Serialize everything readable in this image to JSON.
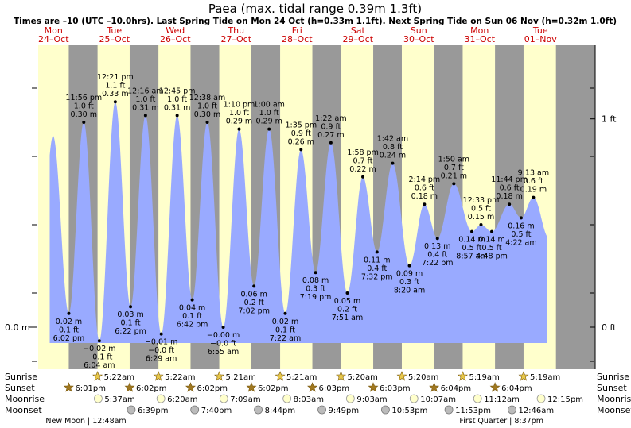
{
  "title": "Paea (max. tidal range 0.39m 1.3ft)",
  "subtitle": "Times are –10 (UTC –10.0hrs). Last Spring Tide on Mon 24 Oct (h=0.33m 1.1ft). Next Spring Tide on Sun 06 Nov (h=0.32m 1.0ft)",
  "colors": {
    "day": "#ffffcc",
    "night": "#999999",
    "tide_fill": "#99aaff",
    "header_red": "#cc0000",
    "sun_star": "#e8c84a",
    "sunset_star": "#a07820",
    "moonrise": "#ffffcc",
    "moonset": "#bbbbbb"
  },
  "days": [
    {
      "dow": "Mon",
      "date": "24–Oct"
    },
    {
      "dow": "Tue",
      "date": "25–Oct"
    },
    {
      "dow": "Wed",
      "date": "26–Oct"
    },
    {
      "dow": "Thu",
      "date": "27–Oct"
    },
    {
      "dow": "Fri",
      "date": "28–Oct"
    },
    {
      "dow": "Sat",
      "date": "29–Oct"
    },
    {
      "dow": "Sun",
      "date": "30–Oct"
    },
    {
      "dow": "Mon",
      "date": "31–Oct"
    },
    {
      "dow": "Tue",
      "date": "01–Nov"
    }
  ],
  "chart_data": {
    "type": "area",
    "title": "Paea (max. tidal range 0.39m 1.3ft)",
    "x_unit": "hours since 24-Oct 00:00 (UTC-10)",
    "y_unit": "m",
    "xlim": [
      0,
      216
    ],
    "ylim": [
      -0.07,
      0.43
    ],
    "left_axis_label": "0.0 m",
    "right_axis_labels": [
      {
        "value": 0.305,
        "label": "1 ft"
      },
      {
        "value": 0.0,
        "label": "0 ft"
      }
    ],
    "extremes": [
      {
        "t": 18.03,
        "h": 0.02,
        "time": "6:02 pm",
        "m": "0.02 m",
        "ft": "0.1 ft",
        "type": "low"
      },
      {
        "t": 23.93,
        "h": 0.3,
        "time": "11:56 pm",
        "m": "0.30 m",
        "ft": "1.0 ft",
        "type": "high"
      },
      {
        "t": 30.07,
        "h": -0.02,
        "time": "6:04 am",
        "m": "−0.02 m",
        "ft": "−0.1 ft",
        "type": "low"
      },
      {
        "t": 36.35,
        "h": 0.33,
        "time": "12:21 pm",
        "m": "0.33 m",
        "ft": "1.1 ft",
        "type": "high"
      },
      {
        "t": 42.37,
        "h": 0.03,
        "time": "6:22 pm",
        "m": "0.03 m",
        "ft": "0.1 ft",
        "type": "low"
      },
      {
        "t": 48.27,
        "h": 0.31,
        "time": "12:16 am",
        "m": "0.31 m",
        "ft": "1.0 ft",
        "type": "high"
      },
      {
        "t": 54.48,
        "h": -0.01,
        "time": "6:29 am",
        "m": "−0.01 m",
        "ft": "−0.0 ft",
        "type": "low"
      },
      {
        "t": 60.75,
        "h": 0.31,
        "time": "12:45 pm",
        "m": "0.31 m",
        "ft": "1.0 ft",
        "type": "high"
      },
      {
        "t": 66.7,
        "h": 0.04,
        "time": "6:42 pm",
        "m": "0.04 m",
        "ft": "0.1 ft",
        "type": "low"
      },
      {
        "t": 72.63,
        "h": 0.3,
        "time": "12:38 am",
        "m": "0.30 m",
        "ft": "1.0 ft",
        "type": "high"
      },
      {
        "t": 78.92,
        "h": -0.0,
        "time": "6:55 am",
        "m": "−0.00 m",
        "ft": "−0.0 ft",
        "type": "low"
      },
      {
        "t": 85.17,
        "h": 0.29,
        "time": "1:10 pm",
        "m": "0.29 m",
        "ft": "1.0 ft",
        "type": "high"
      },
      {
        "t": 91.03,
        "h": 0.06,
        "time": "7:02 pm",
        "m": "0.06 m",
        "ft": "0.2 ft",
        "type": "low"
      },
      {
        "t": 97.0,
        "h": 0.29,
        "time": "1:00 am",
        "m": "0.29 m",
        "ft": "1.0 ft",
        "type": "high"
      },
      {
        "t": 103.37,
        "h": 0.02,
        "time": "7:22 am",
        "m": "0.02 m",
        "ft": "0.1 ft",
        "type": "low"
      },
      {
        "t": 109.58,
        "h": 0.26,
        "time": "1:35 pm",
        "m": "0.26 m",
        "ft": "0.9 ft",
        "type": "high"
      },
      {
        "t": 115.32,
        "h": 0.08,
        "time": "7:19 pm",
        "m": "0.08 m",
        "ft": "0.3 ft",
        "type": "low"
      },
      {
        "t": 121.37,
        "h": 0.27,
        "time": "1:22 am",
        "m": "0.27 m",
        "ft": "0.9 ft",
        "type": "high"
      },
      {
        "t": 127.85,
        "h": 0.05,
        "time": "7:51 am",
        "m": "0.05 m",
        "ft": "0.2 ft",
        "type": "low"
      },
      {
        "t": 133.97,
        "h": 0.22,
        "time": "1:58 pm",
        "m": "0.22 m",
        "ft": "0.7 ft",
        "type": "high"
      },
      {
        "t": 139.53,
        "h": 0.11,
        "time": "7:32 pm",
        "m": "0.11 m",
        "ft": "0.4 ft",
        "type": "low"
      },
      {
        "t": 145.7,
        "h": 0.24,
        "time": "1:42 am",
        "m": "0.24 m",
        "ft": "0.8 ft",
        "type": "high"
      },
      {
        "t": 152.33,
        "h": 0.09,
        "time": "8:20 am",
        "m": "0.09 m",
        "ft": "0.3 ft",
        "type": "low"
      },
      {
        "t": 158.23,
        "h": 0.18,
        "time": "2:14 pm",
        "m": "0.18 m",
        "ft": "0.6 ft",
        "type": "high"
      },
      {
        "t": 163.37,
        "h": 0.13,
        "time": "7:22 pm",
        "m": "0.13 m",
        "ft": "0.4 ft",
        "type": "low"
      },
      {
        "t": 169.83,
        "h": 0.21,
        "time": "1:50 am",
        "m": "0.21 m",
        "ft": "0.7 ft",
        "type": "high"
      },
      {
        "t": 176.95,
        "h": 0.14,
        "time": "8:57 am",
        "m": "0.14 m",
        "ft": "0.5 ft",
        "type": "low"
      },
      {
        "t": 180.55,
        "h": 0.15,
        "time": "12:33 pm",
        "m": "0.15 m",
        "ft": "0.5 ft",
        "type": "high"
      },
      {
        "t": 184.8,
        "h": 0.14,
        "time": "4:48 pm",
        "m": "0.14 m",
        "ft": "0.5 ft",
        "type": "low"
      },
      {
        "t": 191.73,
        "h": 0.18,
        "time": "11:44 pm",
        "m": "0.18 m",
        "ft": "0.6 ft",
        "type": "high"
      },
      {
        "t": 196.37,
        "h": 0.16,
        "time": "4:22 am",
        "m": "0.16 m",
        "ft": "0.5 ft",
        "type": "low"
      },
      {
        "t": 201.22,
        "h": 0.19,
        "time": "9:13 am",
        "m": "0.19 m",
        "ft": "0.6 ft",
        "type": "high"
      }
    ],
    "daylight": [
      {
        "start": 0,
        "end": 18.02
      },
      {
        "start": 29.37,
        "end": 42.03
      },
      {
        "start": 53.37,
        "end": 66.03
      },
      {
        "start": 77.35,
        "end": 90.03
      },
      {
        "start": 101.35,
        "end": 114.05
      },
      {
        "start": 125.33,
        "end": 138.05
      },
      {
        "start": 149.33,
        "end": 162.07
      },
      {
        "start": 173.32,
        "end": 186.07
      },
      {
        "start": 197.32,
        "end": 210.1
      }
    ]
  },
  "almanac": {
    "row_labels": [
      "Sunrise",
      "Sunset",
      "Moonrise",
      "Moonset"
    ],
    "sunrise": [
      {
        "t": 29.37,
        "text": "5:22am"
      },
      {
        "t": 53.37,
        "text": "5:22am"
      },
      {
        "t": 77.35,
        "text": "5:21am"
      },
      {
        "t": 101.35,
        "text": "5:21am"
      },
      {
        "t": 125.33,
        "text": "5:20am"
      },
      {
        "t": 149.33,
        "text": "5:20am"
      },
      {
        "t": 173.32,
        "text": "5:19am"
      },
      {
        "t": 197.32,
        "text": "5:19am"
      }
    ],
    "sunset": [
      {
        "t": 18.02,
        "text": "6:01pm"
      },
      {
        "t": 42.03,
        "text": "6:02pm"
      },
      {
        "t": 66.03,
        "text": "6:02pm"
      },
      {
        "t": 90.03,
        "text": "6:02pm"
      },
      {
        "t": 114.05,
        "text": "6:03pm"
      },
      {
        "t": 138.05,
        "text": "6:03pm"
      },
      {
        "t": 162.07,
        "text": "6:04pm"
      },
      {
        "t": 186.07,
        "text": "6:04pm"
      }
    ],
    "moonrise": [
      {
        "t": 29.62,
        "text": "5:37am"
      },
      {
        "t": 54.33,
        "text": "6:20am"
      },
      {
        "t": 79.15,
        "text": "7:09am"
      },
      {
        "t": 104.05,
        "text": "8:03am"
      },
      {
        "t": 129.05,
        "text": "9:03am"
      },
      {
        "t": 154.12,
        "text": "10:07am"
      },
      {
        "t": 179.2,
        "text": "11:12am"
      },
      {
        "t": 204.25,
        "text": "12:15pm"
      }
    ],
    "moonset": [
      {
        "t": 42.65,
        "text": "6:39pm"
      },
      {
        "t": 67.67,
        "text": "7:40pm"
      },
      {
        "t": 92.73,
        "text": "8:44pm"
      },
      {
        "t": 117.82,
        "text": "9:49pm"
      },
      {
        "t": 142.88,
        "text": "10:53pm"
      },
      {
        "t": 167.88,
        "text": "11:53pm"
      },
      {
        "t": 192.77,
        "text": "12:46am"
      }
    ],
    "moon_phases": [
      {
        "t": 24.8,
        "text": "New Moon | 12:48am"
      },
      {
        "t": 188.62,
        "text": "First Quarter | 8:37pm"
      }
    ]
  }
}
